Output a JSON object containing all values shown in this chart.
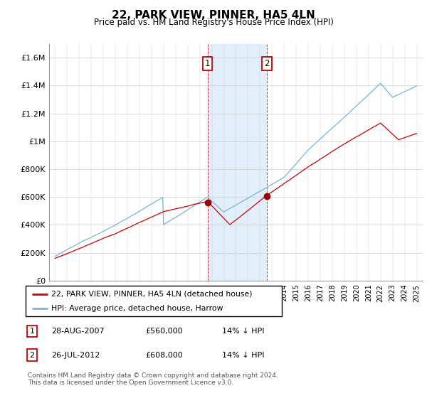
{
  "title": "22, PARK VIEW, PINNER, HA5 4LN",
  "subtitle": "Price paid vs. HM Land Registry's House Price Index (HPI)",
  "legend_line1": "22, PARK VIEW, PINNER, HA5 4LN (detached house)",
  "legend_line2": "HPI: Average price, detached house, Harrow",
  "transaction1_label": "1",
  "transaction1_date": "28-AUG-2007",
  "transaction1_price": "£560,000",
  "transaction1_hpi": "14% ↓ HPI",
  "transaction2_label": "2",
  "transaction2_date": "26-JUL-2012",
  "transaction2_price": "£608,000",
  "transaction2_hpi": "14% ↓ HPI",
  "footnote1": "Contains HM Land Registry data © Crown copyright and database right 2024.",
  "footnote2": "This data is licensed under the Open Government Licence v3.0.",
  "hpi_color": "#7ab4d8",
  "price_color": "#cc0000",
  "marker_color": "#990000",
  "shade_color": "#d6e8f7",
  "transaction1_year": 2007.65,
  "transaction2_year": 2012.56,
  "ylim_min": 0,
  "ylim_max": 1700000,
  "yticks": [
    0,
    200000,
    400000,
    600000,
    800000,
    1000000,
    1200000,
    1400000,
    1600000
  ],
  "ytick_labels": [
    "£0",
    "£200K",
    "£400K",
    "£600K",
    "£800K",
    "£1M",
    "£1.2M",
    "£1.4M",
    "£1.6M"
  ],
  "xmin": 1994.5,
  "xmax": 2025.5,
  "t1_price": 560000,
  "t2_price": 608000
}
